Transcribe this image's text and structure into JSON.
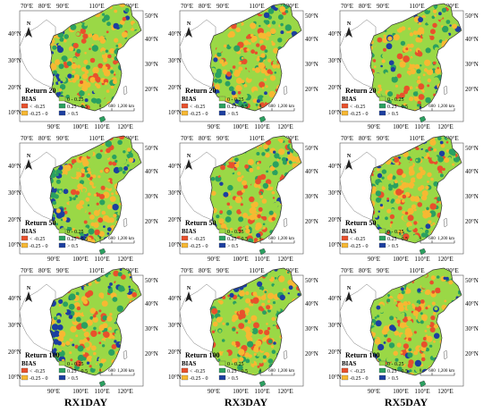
{
  "columns": [
    "RX1DAY",
    "RX3DAY",
    "RX5DAY"
  ],
  "rows": [
    "Return 20",
    "Return 50",
    "Return 100"
  ],
  "map": {
    "top_lon_labels": [
      "70°E",
      "80°E",
      "90°E",
      "110°E",
      "130°E"
    ],
    "bottom_lon_labels": [
      "90°E",
      "100°E",
      "110°E",
      "120°E"
    ],
    "lat_labels_left": [
      "40°N",
      "30°N",
      "20°N",
      "10°N"
    ],
    "lat_labels_right": [
      "50°N",
      "40°N",
      "30°N",
      "20°N"
    ],
    "north_arrow_label": "N",
    "scale_bar_labels": [
      "0",
      "600",
      "1,200 km"
    ]
  },
  "legend": {
    "title": "BIAS",
    "items": [
      {
        "label": "< -0.25",
        "color": "#e8502c"
      },
      {
        "label": "0 - 0.25",
        "color": "#9ad846"
      },
      {
        "label": "-0.25 - 0",
        "color": "#f7b832"
      },
      {
        "label": "0.25 - 0.5",
        "color": "#2aa060"
      },
      {
        "label": "> 0.5",
        "color": "#1c3fa0"
      }
    ]
  },
  "colors": {
    "background_land": "#ffffff",
    "boundary": "#777777",
    "sea": "#ffffff"
  }
}
